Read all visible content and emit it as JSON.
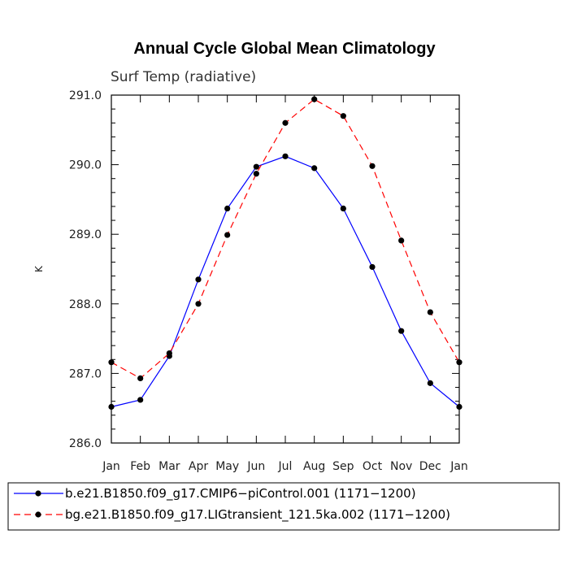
{
  "chart_data": {
    "type": "line",
    "title": "Annual Cycle Global Mean Climatology",
    "subtitle": "Surf Temp (radiative)",
    "xlabel": "",
    "ylabel": "K",
    "categories": [
      "Jan",
      "Feb",
      "Mar",
      "Apr",
      "May",
      "Jun",
      "Jul",
      "Aug",
      "Sep",
      "Oct",
      "Nov",
      "Dec",
      "Jan"
    ],
    "ylim": [
      286.0,
      291.0
    ],
    "yticks": [
      "286.0",
      "287.0",
      "288.0",
      "289.0",
      "290.0",
      "291.0"
    ],
    "grid": false,
    "legend_position": "bottom",
    "series": [
      {
        "name": "b.e21.B1850.f09_g17.CMIP6−piControl.001 (1171−1200)",
        "color": "#0000ff",
        "dash": "solid",
        "values": [
          286.52,
          286.62,
          287.25,
          288.35,
          289.37,
          289.97,
          290.12,
          289.95,
          289.37,
          288.53,
          287.61,
          286.86,
          286.52
        ]
      },
      {
        "name": "bg.e21.B1850.f09_g17.LIGtransient_121.5ka.002 (1171−1200)",
        "color": "#ff0000",
        "dash": "dashed",
        "values": [
          287.16,
          286.93,
          287.29,
          288.0,
          288.99,
          289.87,
          290.6,
          290.94,
          290.7,
          289.98,
          288.91,
          287.88,
          287.16
        ]
      }
    ]
  }
}
